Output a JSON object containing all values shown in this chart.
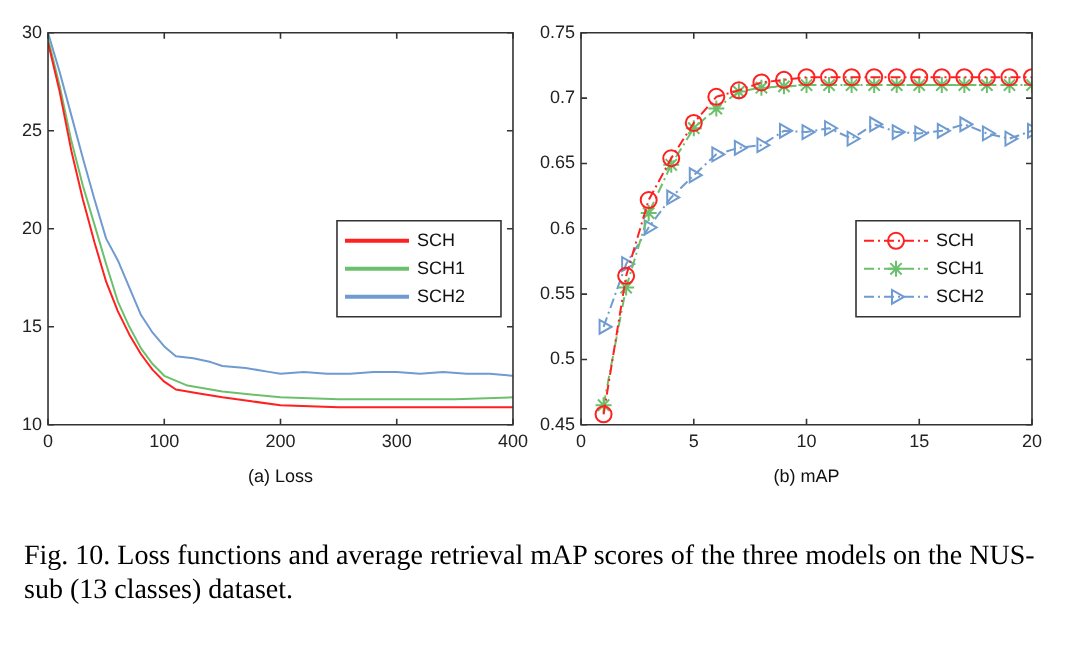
{
  "chart_data": [
    {
      "type": "line",
      "xlabel": "(a) Loss",
      "xlim": [
        0,
        400
      ],
      "xticks": [
        0,
        100,
        200,
        300,
        400
      ],
      "ylim": [
        10,
        30
      ],
      "yticks": [
        10,
        15,
        20,
        25,
        30
      ],
      "legend": "right",
      "marker": "none",
      "line_style": "solid",
      "grid": false,
      "series": [
        {
          "name": "SCH",
          "color": "#ff2020",
          "x": [
            0,
            10,
            20,
            30,
            40,
            50,
            60,
            70,
            80,
            90,
            100,
            110,
            130,
            150,
            175,
            200,
            250,
            300,
            350,
            400
          ],
          "values": [
            29.5,
            27,
            24,
            21.5,
            19.3,
            17.3,
            15.8,
            14.6,
            13.6,
            12.8,
            12.2,
            11.8,
            11.6,
            11.4,
            11.2,
            11.0,
            10.9,
            10.9,
            10.9,
            10.9
          ]
        },
        {
          "name": "SCH1",
          "color": "#6cc06c",
          "x": [
            0,
            10,
            20,
            30,
            40,
            50,
            60,
            70,
            80,
            90,
            100,
            120,
            150,
            200,
            250,
            300,
            350,
            400
          ],
          "values": [
            29.7,
            27.3,
            24.5,
            22.2,
            20.2,
            18.2,
            16.3,
            15.0,
            13.9,
            13.1,
            12.5,
            12.0,
            11.7,
            11.4,
            11.3,
            11.3,
            11.3,
            11.4
          ]
        },
        {
          "name": "SCH2",
          "color": "#6f9bd1",
          "x": [
            0,
            10,
            20,
            30,
            40,
            50,
            60,
            70,
            80,
            90,
            100,
            110,
            125,
            140,
            150,
            170,
            190,
            200,
            220,
            240,
            260,
            280,
            300,
            320,
            340,
            360,
            380,
            400
          ],
          "values": [
            30,
            28,
            25.8,
            23.6,
            21.5,
            19.5,
            18.4,
            17.0,
            15.6,
            14.7,
            14.0,
            13.5,
            13.4,
            13.2,
            13.0,
            12.9,
            12.7,
            12.6,
            12.7,
            12.6,
            12.6,
            12.7,
            12.7,
            12.6,
            12.7,
            12.6,
            12.6,
            12.5
          ]
        }
      ]
    },
    {
      "type": "line",
      "xlabel": "(b) mAP",
      "xlim": [
        0,
        20
      ],
      "xticks": [
        0,
        5,
        10,
        15,
        20
      ],
      "ylim": [
        0.45,
        0.75
      ],
      "yticks": [
        0.45,
        0.5,
        0.55,
        0.6,
        0.65,
        0.7,
        0.75
      ],
      "legend": "right",
      "line_style": "dashed",
      "grid": false,
      "annotations": [
        "Fig. 10.    Loss functions and average retrieval mAP scores of the three models on the NUS-sub (13 classes) dataset."
      ],
      "series": [
        {
          "name": "SCH",
          "color": "#ff2020",
          "marker": "circle",
          "x": [
            1,
            2,
            3,
            4,
            5,
            6,
            7,
            8,
            9,
            10,
            11,
            12,
            13,
            14,
            15,
            16,
            17,
            18,
            19,
            20
          ],
          "values": [
            0.458,
            0.564,
            0.622,
            0.654,
            0.681,
            0.701,
            0.706,
            0.712,
            0.714,
            0.716,
            0.716,
            0.716,
            0.716,
            0.716,
            0.716,
            0.716,
            0.716,
            0.716,
            0.716,
            0.716
          ]
        },
        {
          "name": "SCH1",
          "color": "#6cc06c",
          "marker": "cross",
          "x": [
            1,
            2,
            3,
            4,
            5,
            6,
            7,
            8,
            9,
            10,
            11,
            12,
            13,
            14,
            15,
            16,
            17,
            18,
            19,
            20
          ],
          "values": [
            0.465,
            0.555,
            0.612,
            0.649,
            0.677,
            0.692,
            0.705,
            0.708,
            0.709,
            0.71,
            0.71,
            0.71,
            0.71,
            0.71,
            0.71,
            0.71,
            0.71,
            0.71,
            0.71,
            0.71
          ]
        },
        {
          "name": "SCH2",
          "color": "#6f9bd1",
          "marker": "triangle",
          "x": [
            1,
            2,
            3,
            4,
            5,
            6,
            7,
            8,
            9,
            10,
            11,
            12,
            13,
            14,
            15,
            16,
            17,
            18,
            19,
            20
          ],
          "values": [
            0.525,
            0.573,
            0.601,
            0.624,
            0.641,
            0.657,
            0.662,
            0.664,
            0.675,
            0.674,
            0.677,
            0.669,
            0.68,
            0.674,
            0.673,
            0.675,
            0.68,
            0.673,
            0.669,
            0.675
          ]
        }
      ]
    }
  ]
}
